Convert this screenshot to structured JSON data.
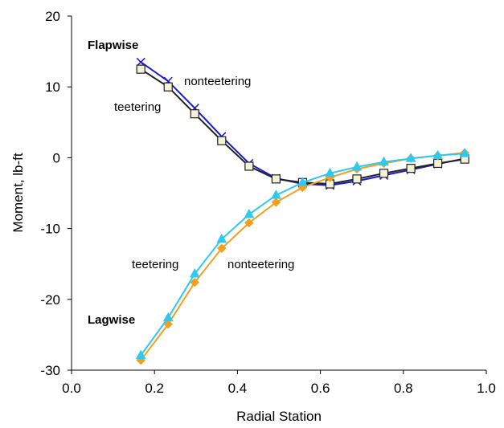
{
  "chart_data": {
    "type": "line",
    "title": "",
    "xlabel": "Radial Station",
    "ylabel": "Moment, lb-ft",
    "xlim": [
      0.0,
      1.0
    ],
    "ylim": [
      -30,
      20
    ],
    "xticks": [
      "0.0",
      "0.2",
      "0.4",
      "0.6",
      "0.8",
      "1.0"
    ],
    "yticks": [
      "20",
      "10",
      "0",
      "-10",
      "-20",
      "-30"
    ],
    "xtick_values": [
      0.0,
      0.2,
      0.4,
      0.6,
      0.8,
      1.0
    ],
    "ytick_values": [
      20,
      10,
      0,
      -10,
      -20,
      -30
    ],
    "grid": false,
    "x": [
      0.167,
      0.233,
      0.297,
      0.362,
      0.428,
      0.493,
      0.557,
      0.623,
      0.688,
      0.753,
      0.818,
      0.883,
      0.948
    ],
    "series": [
      {
        "group": "Flapwise",
        "variant": "nonteetering",
        "color": "#1a1ad6",
        "marker": "x",
        "values": [
          13.5,
          10.8,
          7.0,
          3.0,
          -0.8,
          -2.9,
          -3.7,
          -3.9,
          -3.3,
          -2.5,
          -1.7,
          -0.9,
          -0.1
        ]
      },
      {
        "group": "Flapwise",
        "variant": "teetering",
        "color": "#222222",
        "marker": "square",
        "values": [
          12.5,
          10.0,
          6.2,
          2.4,
          -1.2,
          -3.0,
          -3.5,
          -3.7,
          -3.0,
          -2.2,
          -1.5,
          -0.8,
          -0.2
        ]
      },
      {
        "group": "Lagwise",
        "variant": "nonteetering",
        "color": "#f0a01e",
        "marker": "diamond",
        "values": [
          -28.6,
          -23.5,
          -17.6,
          -12.8,
          -9.2,
          -6.3,
          -4.2,
          -2.8,
          -1.6,
          -0.8,
          -0.1,
          0.3,
          0.7
        ]
      },
      {
        "group": "Lagwise",
        "variant": "teetering",
        "color": "#2fc8f0",
        "marker": "triangle",
        "values": [
          -27.9,
          -22.6,
          -16.4,
          -11.5,
          -8.0,
          -5.3,
          -3.5,
          -2.2,
          -1.3,
          -0.6,
          -0.1,
          0.3,
          0.6
        ]
      }
    ],
    "annotations": [
      {
        "text": "Flapwise",
        "bold": true
      },
      {
        "text": "nonteetering",
        "bold": false
      },
      {
        "text": "teetering",
        "bold": false
      },
      {
        "text": "teetering",
        "bold": false
      },
      {
        "text": "nonteetering",
        "bold": false
      },
      {
        "text": "Lagwise",
        "bold": true
      }
    ]
  }
}
